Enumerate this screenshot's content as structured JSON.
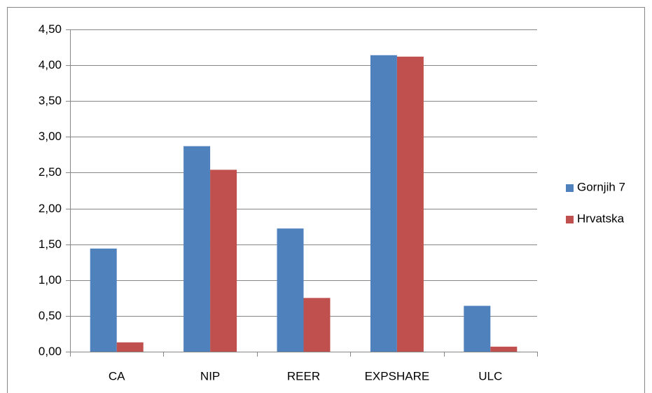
{
  "chart_data": {
    "type": "bar",
    "categories": [
      "CA",
      "NIP",
      "REER",
      "EXPSHARE",
      "ULC"
    ],
    "series": [
      {
        "name": "Gornjih 7",
        "color": "#4f81bd",
        "values": [
          1.44,
          2.87,
          1.72,
          4.14,
          0.64
        ]
      },
      {
        "name": "Hrvatska",
        "color": "#c0504d",
        "values": [
          0.13,
          2.54,
          0.75,
          4.12,
          0.07
        ]
      }
    ],
    "ylim": [
      0,
      4.5
    ],
    "yticks": [
      {
        "value": 0,
        "label": "0,00"
      },
      {
        "value": 0.5,
        "label": "0,50"
      },
      {
        "value": 1,
        "label": "1,00"
      },
      {
        "value": 1.5,
        "label": "1,50"
      },
      {
        "value": 2,
        "label": "2,00"
      },
      {
        "value": 2.5,
        "label": "2,50"
      },
      {
        "value": 3,
        "label": "3,00"
      },
      {
        "value": 3.5,
        "label": "3,50"
      },
      {
        "value": 4,
        "label": "4,00"
      },
      {
        "value": 4.5,
        "label": "4,50"
      }
    ],
    "grid": true,
    "legend": "right"
  }
}
